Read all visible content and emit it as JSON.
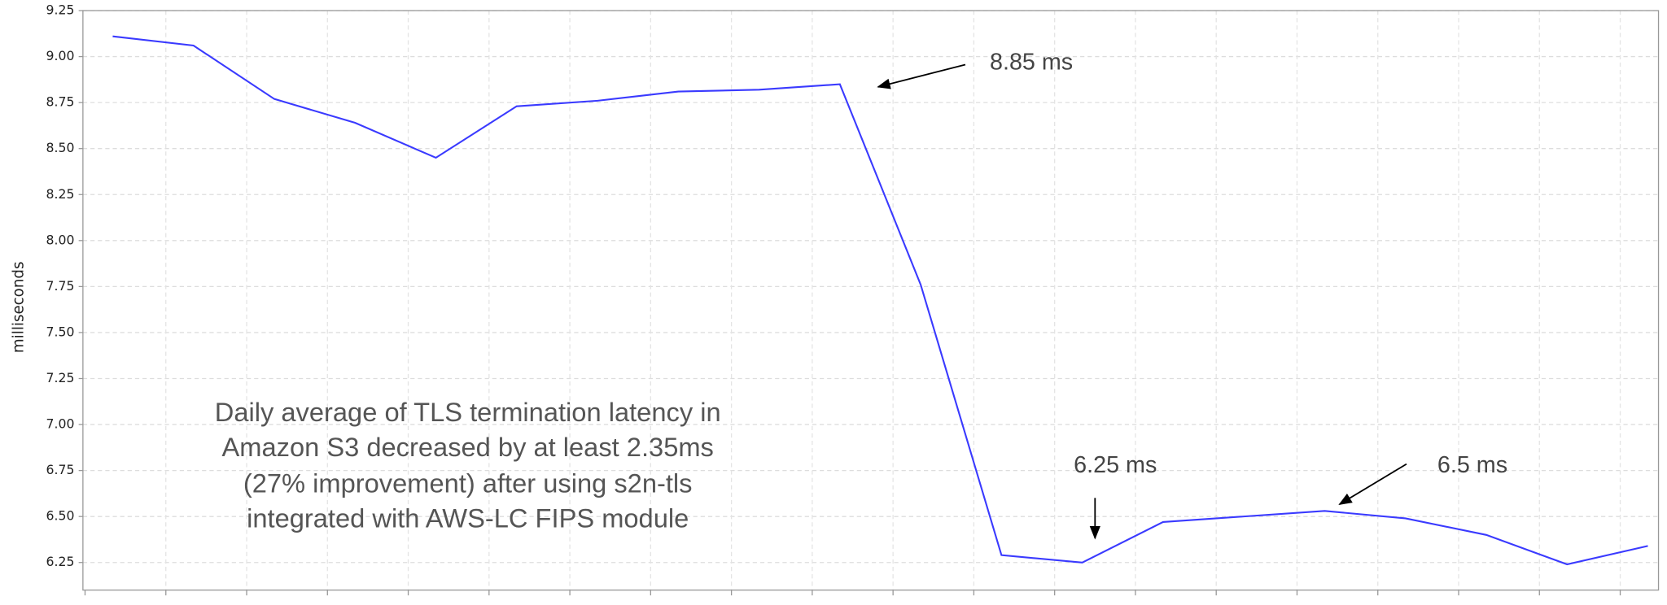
{
  "chart_data": {
    "type": "line",
    "ylabel": "milliseconds",
    "categories": [
      null,
      null,
      null,
      null,
      null,
      null,
      null,
      null,
      null,
      null,
      null,
      null,
      null,
      null,
      null,
      null,
      null,
      null,
      null,
      null
    ],
    "values": [
      9.11,
      9.06,
      8.77,
      8.64,
      8.45,
      8.73,
      8.76,
      8.81,
      8.82,
      8.85,
      7.76,
      6.29,
      6.25,
      6.47,
      6.5,
      6.53,
      6.49,
      6.4,
      6.24,
      6.34
    ],
    "color": "#3a3aff",
    "ylim": [
      6.1,
      9.25
    ],
    "yticks": [
      6.25,
      {
        "value": 6.5,
        "label": "6.50"
      },
      6.75,
      {
        "value": 7,
        "label": "7.00"
      },
      7.25,
      {
        "value": 7.5,
        "label": "7.50"
      },
      7.75,
      {
        "value": 8,
        "label": "8.00"
      },
      8.25,
      {
        "value": 8.5,
        "label": "8.50"
      },
      8.75,
      {
        "value": 9,
        "label": "9.00"
      },
      9.25
    ],
    "grid": true,
    "annotations": [
      "8.85 ms",
      "6.25 ms",
      "6.5 ms"
    ],
    "note": [
      "Daily average of TLS termination latency in",
      "Amazon S3 decreased by at least 2.35ms",
      "(27% improvement) after using s2n-tls",
      "integrated with AWS-LC FIPS module"
    ]
  }
}
